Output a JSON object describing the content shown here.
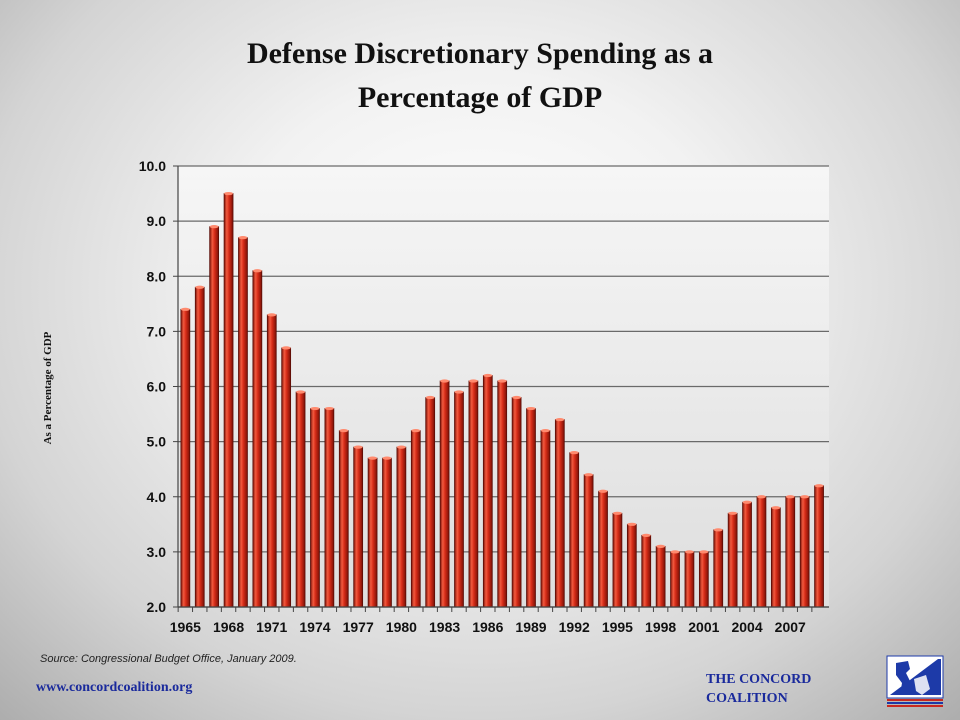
{
  "chart_data": {
    "type": "bar",
    "title": "Defense Discretionary Spending as a",
    "title_line2": "Percentage of GDP",
    "ylabel": "As a Percentage of GDP",
    "xlabel": "",
    "ylim": [
      2.0,
      10.0
    ],
    "y_ticks": [
      "2.0",
      "3.0",
      "4.0",
      "5.0",
      "6.0",
      "7.0",
      "8.0",
      "9.0",
      "10.0"
    ],
    "grid": true,
    "bar_color": "#cc2a1c",
    "categories": [
      1965,
      1966,
      1967,
      1968,
      1969,
      1970,
      1971,
      1972,
      1973,
      1974,
      1975,
      1976,
      1977,
      1978,
      1979,
      1980,
      1981,
      1982,
      1983,
      1984,
      1985,
      1986,
      1987,
      1988,
      1989,
      1990,
      1991,
      1992,
      1993,
      1994,
      1995,
      1996,
      1997,
      1998,
      1999,
      2000,
      2001,
      2002,
      2003,
      2004,
      2005,
      2006,
      2007,
      2008,
      2009
    ],
    "x_tick_labels": [
      "1965",
      "1968",
      "1971",
      "1974",
      "1977",
      "1980",
      "1983",
      "1986",
      "1989",
      "1992",
      "1995",
      "1998",
      "2001",
      "2004",
      "2007"
    ],
    "values": [
      7.4,
      7.8,
      8.9,
      9.5,
      8.7,
      8.1,
      7.3,
      6.7,
      5.9,
      5.6,
      5.6,
      5.2,
      4.9,
      4.7,
      4.7,
      4.9,
      5.2,
      5.8,
      6.1,
      5.9,
      6.1,
      6.2,
      6.1,
      5.8,
      5.6,
      5.2,
      5.4,
      4.8,
      4.4,
      4.1,
      3.7,
      3.5,
      3.3,
      3.1,
      3.0,
      3.0,
      3.0,
      3.4,
      3.7,
      3.9,
      4.0,
      3.8,
      4.0,
      4.0,
      4.2
    ]
  },
  "footer": {
    "source": "Source: Congressional Budget Office, January 2009.",
    "url": "www.concordcoalition.org",
    "org_line1": "THE CONCORD",
    "org_line2": "COALITION",
    "logo_icon": "concord-minuteman-logo-icon"
  },
  "colors": {
    "bar": "#cc2a1c",
    "bar_outline": "#5a0d07",
    "org_text": "#1a2a9c",
    "logo_blue": "#1d3aa8",
    "logo_red": "#c8281e"
  }
}
